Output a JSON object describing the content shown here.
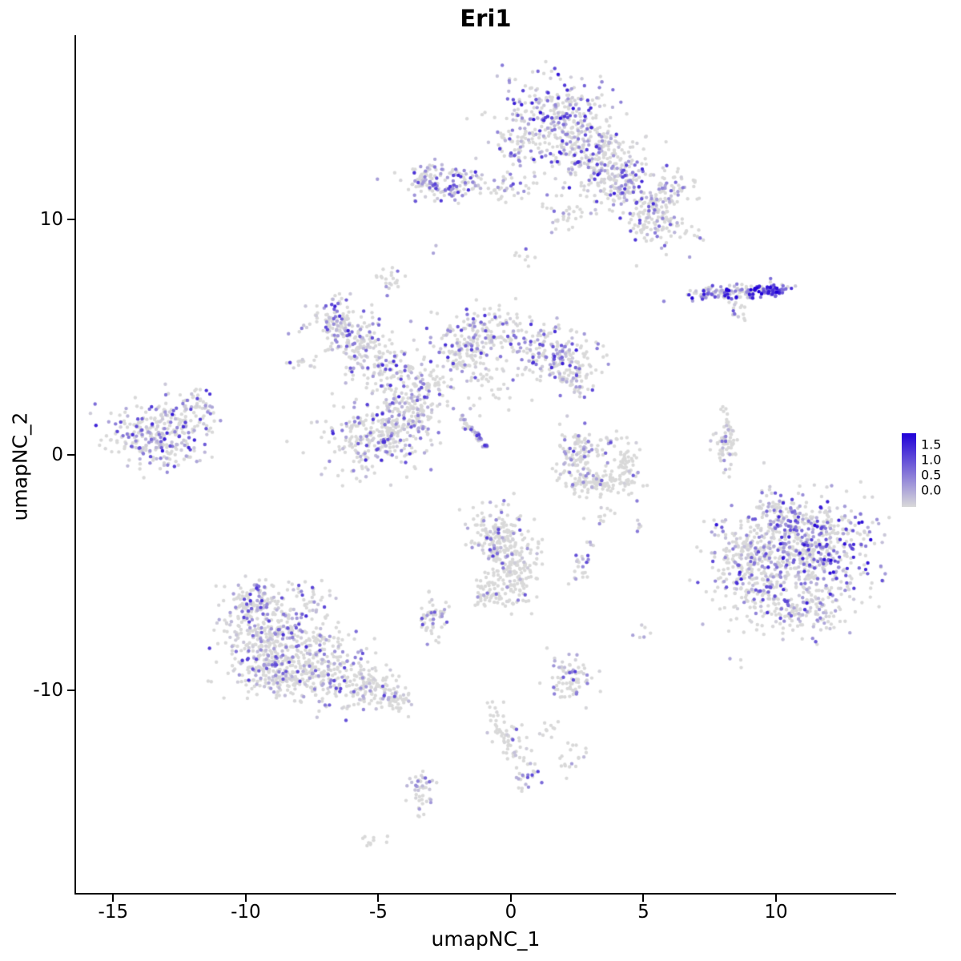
{
  "chart_data": {
    "type": "scatter",
    "title": "Eri1",
    "xlabel": "umapNC_1",
    "ylabel": "umapNC_2",
    "xlim": [
      -16.4,
      14.5
    ],
    "ylim": [
      -18.6,
      17.8
    ],
    "x_ticks": [
      -15,
      -10,
      -5,
      0,
      5,
      10
    ],
    "x_tick_labels": [
      "-15",
      "-10",
      "-5",
      "0",
      "5",
      "10"
    ],
    "y_ticks": [
      -10,
      0,
      10
    ],
    "y_tick_labels": [
      "-10",
      "0",
      "10"
    ],
    "grid": false,
    "legend": {
      "position": "right",
      "labels": [
        "1.5",
        "1.0",
        "0.5",
        "0.0"
      ],
      "min": 0.0,
      "max": 1.75,
      "color_low": "#D9D9D9",
      "color_high": "#2000D8"
    },
    "point_radius": 2.2,
    "seed": 13,
    "clusters": [
      {
        "x": 1.5,
        "y": 14.3,
        "sx": 1.0,
        "sy": 0.9,
        "n": 320,
        "f": 0.5,
        "m": 1.6
      },
      {
        "x": 3.0,
        "y": 12.8,
        "sx": 0.9,
        "sy": 0.8,
        "n": 230,
        "f": 0.45,
        "m": 1.6
      },
      {
        "x": 4.3,
        "y": 11.6,
        "sx": 0.7,
        "sy": 0.6,
        "n": 150,
        "f": 0.45,
        "m": 1.5
      },
      {
        "x": 5.5,
        "y": 10.0,
        "sx": 0.6,
        "sy": 0.55,
        "n": 130,
        "f": 0.4,
        "m": 1.5
      },
      {
        "x": 6.0,
        "y": 11.2,
        "sx": 0.5,
        "sy": 0.5,
        "n": 60,
        "f": 0.4,
        "m": 1.4
      },
      {
        "x": 0.4,
        "y": 12.7,
        "sx": 0.5,
        "sy": 0.7,
        "n": 40,
        "f": 0.3,
        "m": 1.2
      },
      {
        "x": 2.0,
        "y": 10.2,
        "sx": 0.5,
        "sy": 0.4,
        "n": 30,
        "f": 0.3,
        "m": 1.2
      },
      {
        "x": -2.4,
        "y": 11.5,
        "sx": 0.75,
        "sy": 0.4,
        "n": 140,
        "f": 0.55,
        "m": 1.4
      },
      {
        "x": -3.3,
        "y": 11.8,
        "sx": 0.3,
        "sy": 0.3,
        "n": 30,
        "f": 0.5,
        "m": 1.2
      },
      {
        "x": 0.0,
        "y": 11.3,
        "sx": 0.5,
        "sy": 0.35,
        "n": 25,
        "f": 0.3,
        "m": 1.0
      },
      {
        "x": -2.8,
        "y": 8.7,
        "sx": 0.1,
        "sy": 0.1,
        "n": 2,
        "f": 1,
        "m": 0.9
      },
      {
        "x": -4.5,
        "y": 7.3,
        "sx": 0.3,
        "sy": 0.3,
        "n": 22,
        "f": 0.45,
        "m": 1.0
      },
      {
        "x": 8.3,
        "y": 6.9,
        "sx": 0.95,
        "sy": 0.16,
        "n": 130,
        "f": 0.8,
        "m": 1.8,
        "rot": 0.06
      },
      {
        "x": 9.6,
        "y": 7.0,
        "sx": 0.4,
        "sy": 0.16,
        "n": 60,
        "f": 0.95,
        "m": 1.9,
        "vmin": 0.45
      },
      {
        "x": 8.6,
        "y": 6.1,
        "sx": 0.25,
        "sy": 0.25,
        "n": 15,
        "f": 0.5,
        "m": 1.2
      },
      {
        "x": -6.6,
        "y": 5.6,
        "sx": 0.6,
        "sy": 0.6,
        "n": 120,
        "f": 0.6,
        "m": 1.5
      },
      {
        "x": -5.6,
        "y": 4.6,
        "sx": 0.6,
        "sy": 0.55,
        "n": 110,
        "f": 0.5,
        "m": 1.4
      },
      {
        "x": -4.5,
        "y": 3.6,
        "sx": 0.7,
        "sy": 0.55,
        "n": 100,
        "f": 0.45,
        "m": 1.4
      },
      {
        "x": -3.2,
        "y": 2.9,
        "sx": 0.45,
        "sy": 0.5,
        "n": 60,
        "f": 0.4,
        "m": 1.3
      },
      {
        "x": -1.0,
        "y": 5.2,
        "sx": 0.9,
        "sy": 0.55,
        "n": 180,
        "f": 0.45,
        "m": 1.4
      },
      {
        "x": -1.9,
        "y": 4.2,
        "sx": 0.45,
        "sy": 0.45,
        "n": 80,
        "f": 0.4,
        "m": 1.3
      },
      {
        "x": 1.6,
        "y": 4.3,
        "sx": 0.8,
        "sy": 0.6,
        "n": 170,
        "f": 0.5,
        "m": 1.5
      },
      {
        "x": 2.4,
        "y": 3.3,
        "sx": 0.4,
        "sy": 0.45,
        "n": 60,
        "f": 0.5,
        "m": 1.4
      },
      {
        "x": -0.6,
        "y": 3.0,
        "sx": 0.5,
        "sy": 0.5,
        "n": 35,
        "f": 0.3,
        "m": 1.2
      },
      {
        "x": -5.1,
        "y": 0.7,
        "sx": 0.95,
        "sy": 0.75,
        "n": 280,
        "f": 0.45,
        "m": 1.5
      },
      {
        "x": -4.0,
        "y": 1.9,
        "sx": 0.45,
        "sy": 0.4,
        "n": 70,
        "f": 0.5,
        "m": 1.4
      },
      {
        "x": -3.3,
        "y": 1.4,
        "sx": 0.35,
        "sy": 0.4,
        "n": 40,
        "f": 0.4,
        "m": 1.2
      },
      {
        "x": -1.4,
        "y": 1.0,
        "sx": 0.55,
        "sy": 0.07,
        "n": 45,
        "f": 0.7,
        "m": 1.4,
        "rot": -0.9
      },
      {
        "x": -13.4,
        "y": 0.9,
        "sx": 0.95,
        "sy": 0.7,
        "n": 300,
        "f": 0.5,
        "m": 1.6
      },
      {
        "x": -11.9,
        "y": 2.0,
        "sx": 0.4,
        "sy": 0.4,
        "n": 50,
        "f": 0.5,
        "m": 1.5
      },
      {
        "x": -11.5,
        "y": 2.6,
        "sx": 0.12,
        "sy": 0.12,
        "n": 3,
        "f": 1,
        "m": 1.6,
        "vmin": 0.6
      },
      {
        "x": 2.4,
        "y": -0.1,
        "sx": 0.35,
        "sy": 0.6,
        "n": 80,
        "f": 0.5,
        "m": 1.3
      },
      {
        "x": 3.3,
        "y": -1.2,
        "sx": 0.75,
        "sy": 0.3,
        "n": 110,
        "f": 0.15,
        "m": 1.0
      },
      {
        "x": 4.3,
        "y": -0.4,
        "sx": 0.25,
        "sy": 0.55,
        "n": 60,
        "f": 0.1,
        "m": 1.0
      },
      {
        "x": 3.0,
        "y": 0.4,
        "sx": 0.5,
        "sy": 0.3,
        "n": 40,
        "f": 0.4,
        "m": 1.2
      },
      {
        "x": 3.4,
        "y": -2.4,
        "sx": 0.3,
        "sy": 0.25,
        "n": 12,
        "f": 0.2,
        "m": 1.0
      },
      {
        "x": 8.1,
        "y": 0.4,
        "sx": 0.22,
        "sy": 0.65,
        "n": 70,
        "f": 0.25,
        "m": 1.0
      },
      {
        "x": 8.0,
        "y": 1.9,
        "sx": 0.12,
        "sy": 0.15,
        "n": 4,
        "f": 0.3,
        "m": 0.8
      },
      {
        "x": 11.3,
        "y": -4.0,
        "sx": 1.25,
        "sy": 1.15,
        "n": 600,
        "f": 0.6,
        "m": 1.7
      },
      {
        "x": 9.2,
        "y": -5.0,
        "sx": 0.85,
        "sy": 1.05,
        "n": 260,
        "f": 0.3,
        "m": 1.2
      },
      {
        "x": 10.7,
        "y": -6.6,
        "sx": 0.85,
        "sy": 0.5,
        "n": 140,
        "f": 0.45,
        "m": 1.4
      },
      {
        "x": 10.2,
        "y": -2.4,
        "sx": 0.6,
        "sy": 0.4,
        "n": 80,
        "f": 0.5,
        "m": 1.5
      },
      {
        "x": 8.3,
        "y": -3.6,
        "sx": 0.4,
        "sy": 0.6,
        "n": 40,
        "f": 0.3,
        "m": 1.1
      },
      {
        "x": -0.5,
        "y": -3.4,
        "sx": 0.55,
        "sy": 0.6,
        "n": 160,
        "f": 0.3,
        "m": 1.3
      },
      {
        "x": 0.1,
        "y": -4.8,
        "sx": 0.5,
        "sy": 0.75,
        "n": 170,
        "f": 0.15,
        "m": 1.1
      },
      {
        "x": -0.7,
        "y": -5.9,
        "sx": 0.4,
        "sy": 0.4,
        "n": 50,
        "f": 0.2,
        "m": 1.0
      },
      {
        "x": 2.7,
        "y": -4.8,
        "sx": 0.25,
        "sy": 0.3,
        "n": 22,
        "f": 0.6,
        "m": 1.2
      },
      {
        "x": 3.0,
        "y": -3.8,
        "sx": 0.1,
        "sy": 0.1,
        "n": 4,
        "f": 0.6,
        "m": 1.0
      },
      {
        "x": 4.9,
        "y": -3.0,
        "sx": 0.15,
        "sy": 0.15,
        "n": 5,
        "f": 0.5,
        "m": 1.0
      },
      {
        "x": 5.0,
        "y": -7.5,
        "sx": 0.2,
        "sy": 0.2,
        "n": 6,
        "f": 0.5,
        "m": 1.1
      },
      {
        "x": -9.0,
        "y": -7.8,
        "sx": 1.0,
        "sy": 0.9,
        "n": 380,
        "f": 0.4,
        "m": 1.4
      },
      {
        "x": -8.6,
        "y": -9.4,
        "sx": 0.9,
        "sy": 0.6,
        "n": 200,
        "f": 0.35,
        "m": 1.3
      },
      {
        "x": -6.8,
        "y": -9.2,
        "sx": 0.8,
        "sy": 0.7,
        "n": 180,
        "f": 0.35,
        "m": 1.3
      },
      {
        "x": -5.3,
        "y": -10.0,
        "sx": 0.6,
        "sy": 0.45,
        "n": 110,
        "f": 0.3,
        "m": 1.3
      },
      {
        "x": -9.7,
        "y": -6.2,
        "sx": 0.5,
        "sy": 0.4,
        "n": 90,
        "f": 0.45,
        "m": 1.4
      },
      {
        "x": -4.3,
        "y": -10.4,
        "sx": 0.35,
        "sy": 0.3,
        "n": 40,
        "f": 0.3,
        "m": 1.2
      },
      {
        "x": -7.6,
        "y": -5.9,
        "sx": 0.4,
        "sy": 0.3,
        "n": 25,
        "f": 0.4,
        "m": 1.2
      },
      {
        "x": -3.0,
        "y": -6.9,
        "sx": 0.3,
        "sy": 0.45,
        "n": 55,
        "f": 0.55,
        "m": 1.2
      },
      {
        "x": 2.3,
        "y": -9.4,
        "sx": 0.4,
        "sy": 0.5,
        "n": 75,
        "f": 0.35,
        "m": 1.3
      },
      {
        "x": 2.5,
        "y": -8.5,
        "sx": 0.1,
        "sy": 0.1,
        "n": 2,
        "f": 1,
        "m": 1.2
      },
      {
        "x": -0.4,
        "y": -11.3,
        "sx": 0.3,
        "sy": 0.5,
        "n": 35,
        "f": 0.25,
        "m": 1.1
      },
      {
        "x": 0.0,
        "y": -12.3,
        "sx": 0.3,
        "sy": 0.4,
        "n": 30,
        "f": 0.3,
        "m": 1.1
      },
      {
        "x": 0.7,
        "y": -13.7,
        "sx": 0.25,
        "sy": 0.35,
        "n": 22,
        "f": 0.6,
        "m": 1.3,
        "vmin": 0.2
      },
      {
        "x": 2.3,
        "y": -12.9,
        "sx": 0.3,
        "sy": 0.4,
        "n": 18,
        "f": 0.2,
        "m": 1.0
      },
      {
        "x": 1.4,
        "y": -11.6,
        "sx": 0.3,
        "sy": 0.3,
        "n": 10,
        "f": 0.2,
        "m": 1.0
      },
      {
        "x": -3.4,
        "y": -14.2,
        "sx": 0.28,
        "sy": 0.55,
        "n": 45,
        "f": 0.5,
        "m": 0.9
      },
      {
        "x": -5.3,
        "y": -16.3,
        "sx": 0.3,
        "sy": 0.15,
        "n": 10,
        "f": 0.1,
        "m": 0.8
      },
      {
        "x": 0.5,
        "y": 8.7,
        "sx": 0.3,
        "sy": 0.3,
        "n": 8,
        "f": 0.2,
        "m": 1.0
      },
      {
        "x": -7.9,
        "y": 3.9,
        "sx": 0.3,
        "sy": 0.3,
        "n": 15,
        "f": 0.5,
        "m": 1.3
      },
      {
        "x": 6.9,
        "y": 9.2,
        "sx": 0.3,
        "sy": 0.3,
        "n": 8,
        "f": 0.4,
        "m": 1.2
      },
      {
        "x": 8.6,
        "y": -8.9,
        "sx": 0.15,
        "sy": 0.15,
        "n": 3,
        "f": 0.3,
        "m": 1.0
      }
    ]
  }
}
